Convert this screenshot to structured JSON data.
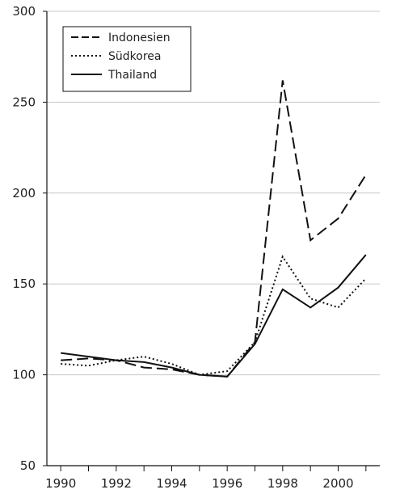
{
  "chart_data": {
    "type": "line",
    "x": [
      1990,
      1991,
      1992,
      1993,
      1994,
      1995,
      1996,
      1997,
      1998,
      1999,
      2000,
      2001
    ],
    "series": [
      {
        "name": "Indonesien",
        "style": "dashed",
        "color": "#111111",
        "values": [
          108,
          109,
          108,
          104,
          103,
          100,
          99,
          118,
          262,
          174,
          186,
          210
        ]
      },
      {
        "name": "Südkorea",
        "style": "dotted",
        "color": "#111111",
        "values": [
          106,
          105,
          108,
          110,
          106,
          100,
          102,
          118,
          165,
          142,
          137,
          153
        ]
      },
      {
        "name": "Thailand",
        "style": "solid",
        "color": "#111111",
        "values": [
          112,
          110,
          108,
          107,
          104,
          100,
          99,
          117,
          147,
          137,
          148,
          166
        ]
      }
    ],
    "ylim": [
      50,
      300
    ],
    "xlim": [
      1989.5,
      2001.5
    ],
    "yticks": [
      50,
      100,
      150,
      200,
      250,
      300
    ],
    "xticks": [
      1990,
      1992,
      1994,
      1996,
      1998,
      2000
    ],
    "grid": "horizontal",
    "legend_position": "top-left",
    "title": "",
    "xlabel": "",
    "ylabel": ""
  }
}
